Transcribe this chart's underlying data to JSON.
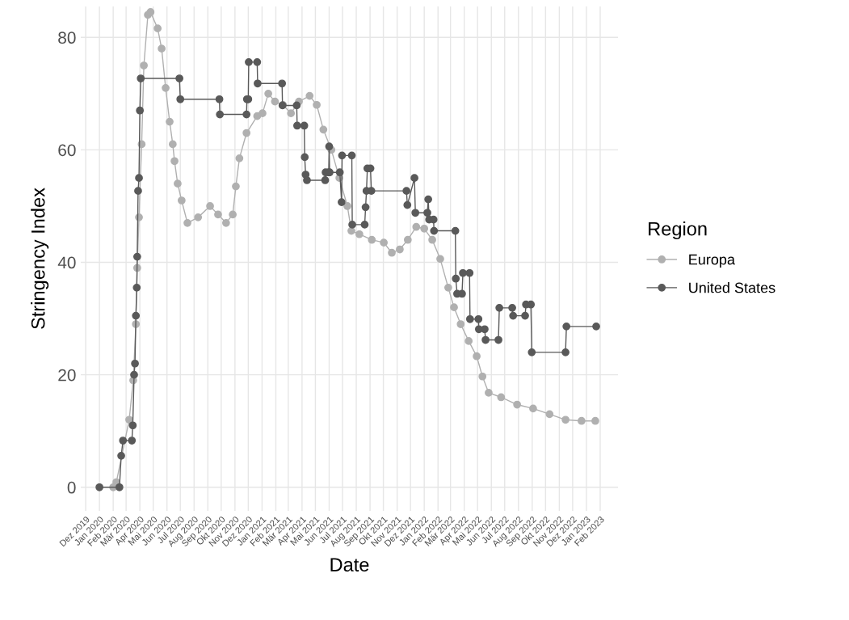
{
  "chart_data": {
    "type": "line",
    "xlabel": "Date",
    "ylabel": "Stringency Index",
    "legend_title": "Region",
    "legend": "right",
    "grid": true,
    "marker": "circle",
    "line_style": "solid",
    "xlim": [
      "2019-11-20",
      "2023-03-13"
    ],
    "xticks": [
      {
        "value": "2019-12-01",
        "label": "Dez 2019"
      },
      {
        "value": "2020-01-01",
        "label": "Jan 2020"
      },
      {
        "value": "2020-02-01",
        "label": "Feb 2020"
      },
      {
        "value": "2020-03-01",
        "label": "Mär 2020"
      },
      {
        "value": "2020-04-01",
        "label": "Apr 2020"
      },
      {
        "value": "2020-05-01",
        "label": "Mai 2020"
      },
      {
        "value": "2020-06-01",
        "label": "Jun 2020"
      },
      {
        "value": "2020-07-01",
        "label": "Jul 2020"
      },
      {
        "value": "2020-08-01",
        "label": "Aug 2020"
      },
      {
        "value": "2020-09-01",
        "label": "Sep 2020"
      },
      {
        "value": "2020-10-01",
        "label": "Okt 2020"
      },
      {
        "value": "2020-11-01",
        "label": "Nov 2020"
      },
      {
        "value": "2020-12-01",
        "label": "Dez 2020"
      },
      {
        "value": "2021-01-01",
        "label": "Jan 2021"
      },
      {
        "value": "2021-02-01",
        "label": "Feb 2021"
      },
      {
        "value": "2021-03-01",
        "label": "Mär 2021"
      },
      {
        "value": "2021-04-01",
        "label": "Apr 2021"
      },
      {
        "value": "2021-05-01",
        "label": "Mai 2021"
      },
      {
        "value": "2021-06-01",
        "label": "Jun 2021"
      },
      {
        "value": "2021-07-01",
        "label": "Jul 2021"
      },
      {
        "value": "2021-08-01",
        "label": "Aug 2021"
      },
      {
        "value": "2021-09-01",
        "label": "Sep 2021"
      },
      {
        "value": "2021-10-01",
        "label": "Okt 2021"
      },
      {
        "value": "2021-11-01",
        "label": "Nov 2021"
      },
      {
        "value": "2021-12-01",
        "label": "Dez 2021"
      },
      {
        "value": "2022-01-01",
        "label": "Jan 2022"
      },
      {
        "value": "2022-02-01",
        "label": "Feb 2022"
      },
      {
        "value": "2022-03-01",
        "label": "Mär 2022"
      },
      {
        "value": "2022-04-01",
        "label": "Apr 2022"
      },
      {
        "value": "2022-05-01",
        "label": "Mai 2022"
      },
      {
        "value": "2022-06-01",
        "label": "Jun 2022"
      },
      {
        "value": "2022-07-01",
        "label": "Jul 2022"
      },
      {
        "value": "2022-08-01",
        "label": "Aug 2022"
      },
      {
        "value": "2022-09-01",
        "label": "Sep 2022"
      },
      {
        "value": "2022-10-01",
        "label": "Okt 2022"
      },
      {
        "value": "2022-11-01",
        "label": "Nov 2022"
      },
      {
        "value": "2022-12-01",
        "label": "Dez 2022"
      },
      {
        "value": "2023-01-01",
        "label": "Jan 2023"
      },
      {
        "value": "2023-02-01",
        "label": "Feb 2023"
      }
    ],
    "ylim": [
      -4.2,
      85.5
    ],
    "yticks": [
      0,
      20,
      40,
      60,
      80
    ],
    "series": [
      {
        "name": "Europa",
        "color": "#b0b0b0",
        "x": [
          "2020-02-01",
          "2020-02-08",
          "2020-03-08",
          "2020-03-17",
          "2020-03-23",
          "2020-03-26",
          "2020-03-30",
          "2020-04-05",
          "2020-04-10",
          "2020-04-19",
          "2020-04-25",
          "2020-05-11",
          "2020-05-20",
          "2020-05-29",
          "2020-06-07",
          "2020-06-14",
          "2020-06-18",
          "2020-06-25",
          "2020-07-04",
          "2020-07-17",
          "2020-08-10",
          "2020-09-06",
          "2020-09-24",
          "2020-10-12",
          "2020-10-27",
          "2020-11-03",
          "2020-11-11",
          "2020-11-27",
          "2020-12-21",
          "2021-01-02",
          "2021-01-15",
          "2021-01-30",
          "2021-02-17",
          "2021-03-07",
          "2021-03-25",
          "2021-04-18",
          "2021-05-04",
          "2021-05-19",
          "2021-06-06",
          "2021-06-24",
          "2021-07-12",
          "2021-07-21",
          "2021-08-08",
          "2021-09-05",
          "2021-10-02",
          "2021-10-20",
          "2021-11-07",
          "2021-11-25",
          "2021-12-14",
          "2022-01-01",
          "2022-01-19",
          "2022-02-06",
          "2022-02-24",
          "2022-03-09",
          "2022-03-24",
          "2022-04-11",
          "2022-04-29",
          "2022-05-12",
          "2022-05-26",
          "2022-06-23",
          "2022-07-29",
          "2022-09-03",
          "2022-10-10",
          "2022-11-15",
          "2022-12-21",
          "2023-01-21"
        ],
        "values": [
          0,
          0.9,
          12,
          19,
          29,
          39,
          48,
          61,
          75,
          84,
          84.5,
          81.6,
          78,
          71,
          65,
          61,
          58,
          54,
          51,
          47,
          48,
          50,
          48.5,
          47,
          48.5,
          53.5,
          58.5,
          63,
          66,
          66.5,
          70,
          68.6,
          68,
          66.5,
          68.6,
          69.6,
          68,
          63.6,
          60,
          55,
          50,
          45.6,
          45,
          44,
          43.5,
          41.7,
          42.3,
          44,
          46.3,
          46,
          44,
          40.6,
          35.5,
          32,
          29,
          26,
          23.3,
          19.7,
          16.8,
          16,
          14.7,
          14,
          13,
          12,
          11.8,
          11.8
        ]
      },
      {
        "name": "United States",
        "color": "#595959",
        "x": [
          "2020-01-01",
          "2020-02-15",
          "2020-02-19",
          "2020-02-23",
          "2020-03-14",
          "2020-03-16",
          "2020-03-19",
          "2020-03-21",
          "2020-03-23",
          "2020-03-25",
          "2020-03-26",
          "2020-03-28",
          "2020-03-30",
          "2020-04-01",
          "2020-04-03",
          "2020-06-29",
          "2020-07-01",
          "2020-09-27",
          "2020-09-28",
          "2020-11-27",
          "2020-11-28",
          "2020-12-01",
          "2020-12-02",
          "2020-12-21",
          "2020-12-22",
          "2021-02-15",
          "2021-02-16",
          "2021-03-20",
          "2021-03-21",
          "2021-04-06",
          "2021-04-07",
          "2021-04-09",
          "2021-04-12",
          "2021-05-23",
          "2021-05-24",
          "2021-05-31",
          "2021-06-01",
          "2021-06-02",
          "2021-06-25",
          "2021-06-29",
          "2021-06-30",
          "2021-07-22",
          "2021-07-23",
          "2021-08-20",
          "2021-08-22",
          "2021-08-24",
          "2021-08-26",
          "2021-09-02",
          "2021-09-04",
          "2021-11-22",
          "2021-11-24",
          "2021-12-10",
          "2021-12-12",
          "2022-01-08",
          "2022-01-10",
          "2022-01-12",
          "2022-01-22",
          "2022-01-23",
          "2022-03-12",
          "2022-03-13",
          "2022-03-16",
          "2022-03-27",
          "2022-03-29",
          "2022-04-13",
          "2022-04-14",
          "2022-05-03",
          "2022-05-04",
          "2022-05-17",
          "2022-05-19",
          "2022-06-17",
          "2022-06-19",
          "2022-07-18",
          "2022-07-20",
          "2022-08-16",
          "2022-08-18",
          "2022-08-29",
          "2022-08-31",
          "2022-11-15",
          "2022-11-17",
          "2023-01-23"
        ],
        "values": [
          0,
          0,
          5.6,
          8.3,
          8.3,
          11,
          20,
          22,
          30.5,
          35.5,
          41,
          52.7,
          55,
          67,
          72.7,
          72.7,
          69,
          69,
          66.3,
          66.3,
          69,
          69,
          75.6,
          75.6,
          71.8,
          71.8,
          67.9,
          67.9,
          64.3,
          64.3,
          58.7,
          55.6,
          54.6,
          54.6,
          56,
          56,
          60.6,
          56,
          56,
          50.7,
          59,
          59,
          46.7,
          46.7,
          49.8,
          52.7,
          56.7,
          56.7,
          52.7,
          52.7,
          50.2,
          55,
          48.8,
          48.8,
          51.2,
          47.6,
          47.6,
          45.6,
          45.6,
          37.1,
          34.4,
          34.4,
          38.1,
          38.1,
          29.9,
          29.9,
          28.1,
          28.1,
          26.2,
          26.2,
          31.9,
          31.9,
          30.5,
          30.5,
          32.5,
          32.5,
          24,
          24,
          28.6,
          28.6
        ]
      }
    ]
  }
}
